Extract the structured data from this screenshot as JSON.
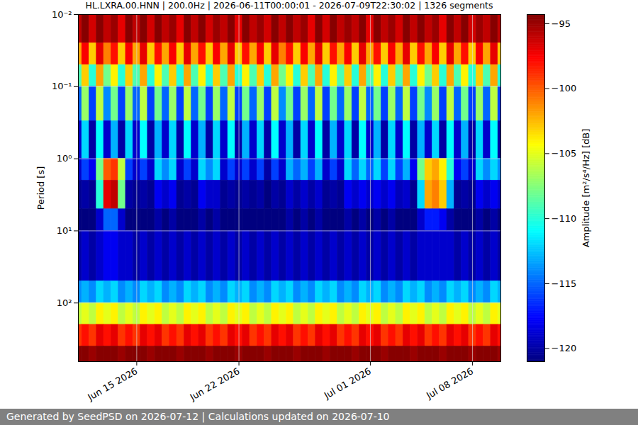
{
  "chart_data": {
    "type": "heatmap",
    "title": "HL.LXRA.00.HNN | 200.0Hz | 2026-06-11T00:00:01 - 2026-07-09T22:30:02 | 1326 segments",
    "ylabel": "Period [s]",
    "colorbar_label": "Amplitude [m²/s⁴/Hz] [dB]",
    "footer": "Generated by SeedPSD on 2026-07-12 | Calculations updated on 2026-07-10",
    "log": "y",
    "grid": true,
    "xlim": [
      "2026-06-11T00:00:01Z",
      "2026-07-09T22:30:02Z"
    ],
    "xticks": [
      {
        "value": "2026-06-15T00:00:00Z",
        "label": "Jun 15 2026"
      },
      {
        "value": "2026-06-22T00:00:00Z",
        "label": "Jun 22 2026"
      },
      {
        "value": "2026-07-01T00:00:00Z",
        "label": "Jul 01 2026"
      },
      {
        "value": "2026-07-08T00:00:00Z",
        "label": "Jul 08 2026"
      }
    ],
    "ylim": [
      0.01,
      650
    ],
    "yticks": [
      {
        "value": 0.01,
        "label": "10⁻²"
      },
      {
        "value": 0.1,
        "label": "10⁻¹"
      },
      {
        "value": 1,
        "label": "10⁰"
      },
      {
        "value": 10,
        "label": "10¹"
      },
      {
        "value": 100,
        "label": "10²"
      }
    ],
    "color_range": [
      -121,
      -94.3
    ],
    "color_ticks": [
      -95,
      -100,
      -105,
      -110,
      -115,
      -120
    ],
    "x_edges": [
      "2026-06-11T00:00:01Z",
      "2026-06-11T06:00:00Z",
      "2026-06-11T18:00:00Z",
      "2026-06-12T06:00:00Z",
      "2026-06-12T18:00:00Z",
      "2026-06-13T06:00:00Z",
      "2026-06-13T18:00:00Z",
      "2026-06-14T06:00:00Z",
      "2026-06-14T18:00:00Z",
      "2026-06-15T06:00:00Z",
      "2026-06-15T18:00:00Z",
      "2026-06-16T06:00:00Z",
      "2026-06-16T18:00:00Z",
      "2026-06-17T06:00:00Z",
      "2026-06-17T18:00:00Z",
      "2026-06-18T06:00:00Z",
      "2026-06-18T18:00:00Z",
      "2026-06-19T06:00:00Z",
      "2026-06-19T18:00:00Z",
      "2026-06-20T06:00:00Z",
      "2026-06-20T18:00:00Z",
      "2026-06-21T06:00:00Z",
      "2026-06-21T18:00:00Z",
      "2026-06-22T06:00:00Z",
      "2026-06-22T18:00:00Z",
      "2026-06-23T06:00:00Z",
      "2026-06-23T18:00:00Z",
      "2026-06-24T06:00:00Z",
      "2026-06-24T18:00:00Z",
      "2026-06-25T06:00:00Z",
      "2026-06-25T18:00:00Z",
      "2026-06-26T06:00:00Z",
      "2026-06-26T18:00:00Z",
      "2026-06-27T06:00:00Z",
      "2026-06-27T18:00:00Z",
      "2026-06-28T06:00:00Z",
      "2026-06-28T18:00:00Z",
      "2026-06-29T06:00:00Z",
      "2026-06-29T18:00:00Z",
      "2026-06-30T06:00:00Z",
      "2026-06-30T18:00:00Z",
      "2026-07-01T06:00:00Z",
      "2026-07-01T18:00:00Z",
      "2026-07-02T06:00:00Z",
      "2026-07-02T18:00:00Z",
      "2026-07-03T06:00:00Z",
      "2026-07-03T18:00:00Z",
      "2026-07-04T06:00:00Z",
      "2026-07-04T18:00:00Z",
      "2026-07-05T06:00:00Z",
      "2026-07-05T18:00:00Z",
      "2026-07-06T06:00:00Z",
      "2026-07-06T18:00:00Z",
      "2026-07-07T06:00:00Z",
      "2026-07-07T18:00:00Z",
      "2026-07-08T06:00:00Z",
      "2026-07-08T18:00:00Z",
      "2026-07-09T06:00:00Z",
      "2026-07-09T18:00:00Z",
      "2026-07-09T22:30:02Z"
    ],
    "y_edges": [
      0.01,
      0.025,
      0.05,
      0.1,
      0.3,
      1,
      2,
      5,
      10,
      50,
      100,
      200,
      400,
      650
    ],
    "cells": [
      [
        -96,
        -94.5,
        -96.5,
        -94.5,
        -96,
        -95,
        -97,
        -94.5,
        -96,
        -94.5,
        -96.5,
        -94.5,
        -96,
        -95,
        -97,
        -94.5,
        -96,
        -94.5,
        -96.5,
        -95,
        -96,
        -94.5,
        -97,
        -94.5,
        -96,
        -95,
        -96.5,
        -94.5,
        -96,
        -94.5,
        -96,
        -95,
        -97,
        -94.5,
        -96.5,
        -94.5,
        -96,
        -95,
        -96,
        -94.5,
        -97,
        -94.5,
        -96,
        -95,
        -96.5,
        -94.5,
        -96,
        -94.5,
        -96,
        -95,
        -97,
        -94.5,
        -96,
        -94.5,
        -96.5,
        -95,
        -96,
        -94.5,
        -96
      ],
      [
        -102,
        -97.5,
        -103,
        -97,
        -101,
        -98,
        -103,
        -97.5,
        -102,
        -97,
        -103,
        -98,
        -102,
        -97.5,
        -103,
        -97,
        -102,
        -98,
        -103,
        -97.5,
        -102,
        -97,
        -103,
        -98,
        -102,
        -97.5,
        -103,
        -97,
        -101,
        -98,
        -103,
        -97.5,
        -102,
        -97,
        -103,
        -98,
        -102,
        -97.5,
        -103,
        -97,
        -102,
        -98,
        -103,
        -97.5,
        -102,
        -97,
        -103,
        -98,
        -102,
        -97.5,
        -103,
        -97,
        -102,
        -98,
        -103,
        -97.5,
        -102,
        -97,
        -103
      ],
      [
        -109,
        -103,
        -110,
        -102,
        -108,
        -104,
        -110,
        -103,
        -109,
        -102,
        -110,
        -104,
        -109,
        -103,
        -110,
        -102,
        -109,
        -104,
        -110,
        -103,
        -109,
        -102,
        -110,
        -104,
        -109,
        -103,
        -110,
        -102,
        -108,
        -104,
        -110,
        -103,
        -109,
        -102,
        -110,
        -104,
        -109,
        -103,
        -110,
        -102,
        -109,
        -104,
        -110,
        -103,
        -109,
        -102,
        -110,
        -104,
        -108,
        -103,
        -110,
        -102,
        -109,
        -104,
        -110,
        -103,
        -109,
        -102,
        -110
      ],
      [
        -115,
        -107,
        -116,
        -106,
        -114,
        -108,
        -116,
        -107,
        -115,
        -106,
        -116,
        -108,
        -115,
        -107,
        -116,
        -106,
        -115,
        -108,
        -116,
        -107,
        -115,
        -106,
        -116,
        -108,
        -115,
        -107,
        -116,
        -106,
        -114,
        -108,
        -116,
        -107,
        -115,
        -106,
        -116,
        -108,
        -115,
        -107,
        -116,
        -106,
        -115,
        -108,
        -116,
        -107,
        -115,
        -106,
        -116,
        -108,
        -114,
        -107,
        -116,
        -106,
        -115,
        -108,
        -116,
        -107,
        -115,
        -106,
        -116
      ],
      [
        -119,
        -112,
        -120,
        -111,
        -119,
        -113,
        -120,
        -112,
        -119,
        -111,
        -120,
        -113,
        -119,
        -112,
        -120,
        -111,
        -119,
        -113,
        -120,
        -112,
        -119,
        -111,
        -120,
        -113,
        -119,
        -112,
        -120,
        -111,
        -119,
        -113,
        -120,
        -112,
        -119,
        -111,
        -120,
        -113,
        -119,
        -112,
        -120,
        -111,
        -119,
        -113,
        -120,
        -112,
        -119,
        -111,
        -120,
        -113,
        -119,
        -112,
        -120,
        -111,
        -119,
        -113,
        -120,
        -112,
        -119,
        -111,
        -120
      ],
      [
        -119,
        -116,
        -118,
        -108,
        -100,
        -99,
        -106,
        -116,
        -119,
        -116,
        -119,
        -112,
        -114,
        -112,
        -119,
        -116,
        -119,
        -112,
        -114,
        -112,
        -119,
        -116,
        -119,
        -116,
        -119,
        -116,
        -120,
        -116,
        -119,
        -113,
        -115,
        -113,
        -116,
        -113,
        -119,
        -116,
        -119,
        -112,
        -115,
        -112,
        -115,
        -112,
        -116,
        -112,
        -116,
        -113,
        -118,
        -108,
        -103,
        -102,
        -104,
        -110,
        -118,
        -116,
        -119,
        -112,
        -114,
        -112,
        -114
      ],
      [
        -120.5,
        -120,
        -120.5,
        -110,
        -97,
        -96,
        -108,
        -120,
        -120.5,
        -120,
        -120.5,
        -118,
        -119,
        -118,
        -120.5,
        -120,
        -120.5,
        -118,
        -119,
        -119,
        -120.5,
        -120,
        -120.5,
        -120,
        -120.5,
        -120,
        -121,
        -120,
        -120.5,
        -119,
        -120,
        -119,
        -120,
        -119,
        -120.5,
        -120,
        -120.5,
        -118,
        -119,
        -118,
        -119,
        -118,
        -119,
        -118,
        -119.5,
        -119,
        -120.5,
        -112,
        -102,
        -101,
        -103,
        -113,
        -120.5,
        -120,
        -120.5,
        -118,
        -119,
        -118,
        -119
      ],
      [
        -121,
        -121,
        -121,
        -119,
        -115,
        -115,
        -119,
        -121,
        -121,
        -121,
        -121,
        -120,
        -121,
        -120,
        -121,
        -121,
        -121,
        -120,
        -121,
        -120,
        -121,
        -121,
        -121,
        -121,
        -121,
        -121,
        -121,
        -121,
        -121,
        -120,
        -121,
        -120,
        -121,
        -120,
        -121,
        -121,
        -121,
        -120,
        -121,
        -120,
        -121,
        -120,
        -121,
        -120,
        -121,
        -121,
        -121,
        -119,
        -117,
        -117,
        -118,
        -120,
        -121,
        -121,
        -121,
        -120,
        -121,
        -120,
        -121
      ],
      [
        -120,
        -119,
        -120,
        -119,
        -118,
        -118,
        -119,
        -119,
        -120,
        -119,
        -120,
        -119,
        -120,
        -119,
        -120,
        -119,
        -120,
        -119,
        -120,
        -119,
        -120,
        -119,
        -120,
        -119,
        -120,
        -119,
        -120,
        -119,
        -120,
        -119,
        -120,
        -119,
        -120,
        -119,
        -120,
        -119,
        -120,
        -119,
        -120,
        -119,
        -120,
        -119,
        -120,
        -119,
        -120,
        -119,
        -120,
        -119,
        -119,
        -119,
        -119,
        -119,
        -120,
        -119,
        -120,
        -119,
        -120,
        -119,
        -120
      ],
      [
        -114,
        -113,
        -114,
        -112,
        -113,
        -112,
        -114,
        -113,
        -114,
        -112,
        -113,
        -112,
        -114,
        -113,
        -114,
        -112,
        -113,
        -112,
        -114,
        -113,
        -114,
        -112,
        -113,
        -112,
        -114,
        -113,
        -114,
        -112,
        -113,
        -112,
        -114,
        -113,
        -114,
        -112,
        -113,
        -112,
        -114,
        -113,
        -114,
        -112,
        -113,
        -112,
        -114,
        -113,
        -114,
        -112,
        -113,
        -112,
        -114,
        -113,
        -114,
        -112,
        -113,
        -112,
        -114,
        -113,
        -114,
        -112,
        -113
      ],
      [
        -106,
        -105,
        -106,
        -104,
        -105,
        -104,
        -106,
        -105,
        -106,
        -104,
        -105,
        -104,
        -106,
        -105,
        -106,
        -104,
        -105,
        -104,
        -106,
        -105,
        -106,
        -104,
        -105,
        -104,
        -106,
        -105,
        -106,
        -104,
        -105,
        -104,
        -106,
        -105,
        -106,
        -104,
        -105,
        -104,
        -106,
        -105,
        -106,
        -104,
        -105,
        -104,
        -106,
        -105,
        -106,
        -104,
        -105,
        -104,
        -106,
        -105,
        -106,
        -104,
        -105,
        -104,
        -106,
        -105,
        -106,
        -104,
        -105
      ],
      [
        -99,
        -98,
        -99,
        -97,
        -98,
        -97,
        -99,
        -98,
        -99,
        -97,
        -98,
        -97,
        -99,
        -98,
        -99,
        -97,
        -98,
        -97,
        -99,
        -98,
        -99,
        -97,
        -98,
        -97,
        -99,
        -98,
        -99,
        -97,
        -98,
        -97,
        -99,
        -98,
        -99,
        -97,
        -98,
        -97,
        -99,
        -98,
        -99,
        -97,
        -98,
        -97,
        -99,
        -98,
        -99,
        -97,
        -98,
        -97,
        -99,
        -98,
        -99,
        -97,
        -98,
        -97,
        -99,
        -98,
        -99,
        -97,
        -98
      ],
      [
        -94.5,
        -94.5,
        -95,
        -94.5,
        -94.5,
        -94.5,
        -95,
        -94.5,
        -94.5,
        -94.5,
        -95,
        -94.5,
        -94.5,
        -94.5,
        -95,
        -94.5,
        -94.5,
        -94.5,
        -95,
        -94.5,
        -94.5,
        -94.5,
        -95,
        -94.5,
        -94.5,
        -94.5,
        -95,
        -94.5,
        -94.5,
        -94.5,
        -95,
        -94.5,
        -94.5,
        -94.5,
        -95,
        -94.5,
        -94.5,
        -94.5,
        -95,
        -94.5,
        -94.5,
        -94.5,
        -95,
        -94.5,
        -94.5,
        -94.5,
        -95,
        -94.5,
        -94.5,
        -94.5,
        -95,
        -94.5,
        -94.5,
        -94.5,
        -95,
        -94.5,
        -94.5,
        -94.5,
        -95
      ]
    ]
  }
}
